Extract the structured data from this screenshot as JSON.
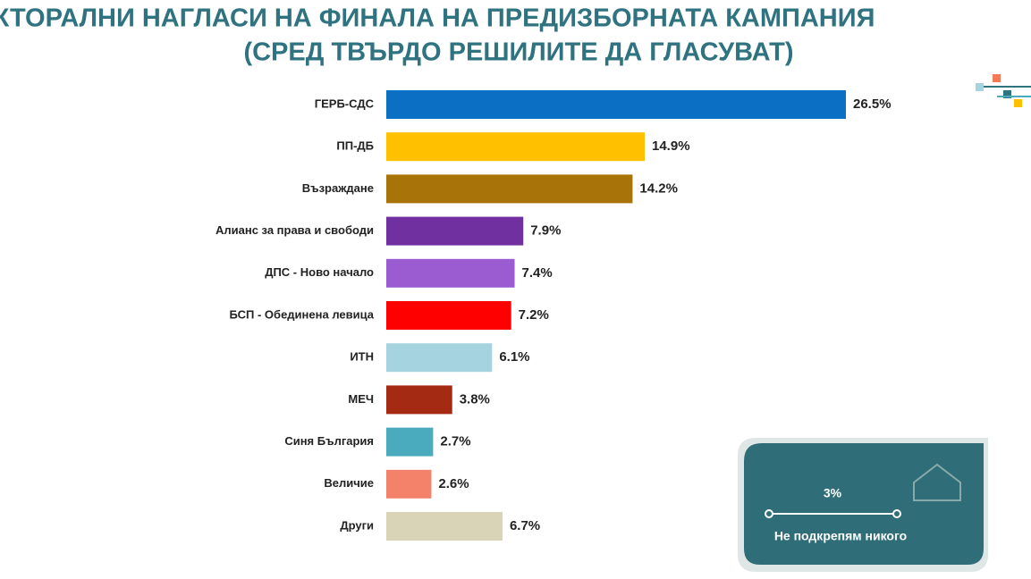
{
  "chart_data": {
    "type": "bar",
    "title": "ЕЛЕКТОРАЛНИ НАГЛАСИ НА ФИНАЛА НА ПРЕДИЗБОРНАТА КАМПАНИЯ",
    "subtitle": "(СРЕД ТВЪРДО РЕШИЛИТЕ ДА ГЛАСУВАТ)",
    "categories": [
      "ГЕРБ-СДС",
      "ПП-ДБ",
      "Възраждане",
      "Алианс за права и свободи",
      "ДПС - Ново начало",
      "БСП - Обединена левица",
      "ИТН",
      "МЕЧ",
      "Синя България",
      "Величие",
      "Други"
    ],
    "values": [
      26.5,
      14.9,
      14.2,
      7.9,
      7.4,
      7.2,
      6.1,
      3.8,
      2.7,
      2.6,
      6.7
    ],
    "value_labels": [
      "26.5%",
      "14.9%",
      "14.2%",
      "7.9%",
      "7.4%",
      "7.2%",
      "6.1%",
      "3.8%",
      "2.7%",
      "2.6%",
      "6.7%"
    ],
    "colors": [
      "#0b6fc4",
      "#ffc000",
      "#a8740a",
      "#7030a0",
      "#9b5bd1",
      "#ff0000",
      "#a6d3e0",
      "#a52a14",
      "#4aabbf",
      "#f4826a",
      "#d9d4b8"
    ],
    "callout": {
      "values": [
        3
      ],
      "value_labels": [
        "3%"
      ],
      "label": "Не подкрепям никого"
    }
  }
}
